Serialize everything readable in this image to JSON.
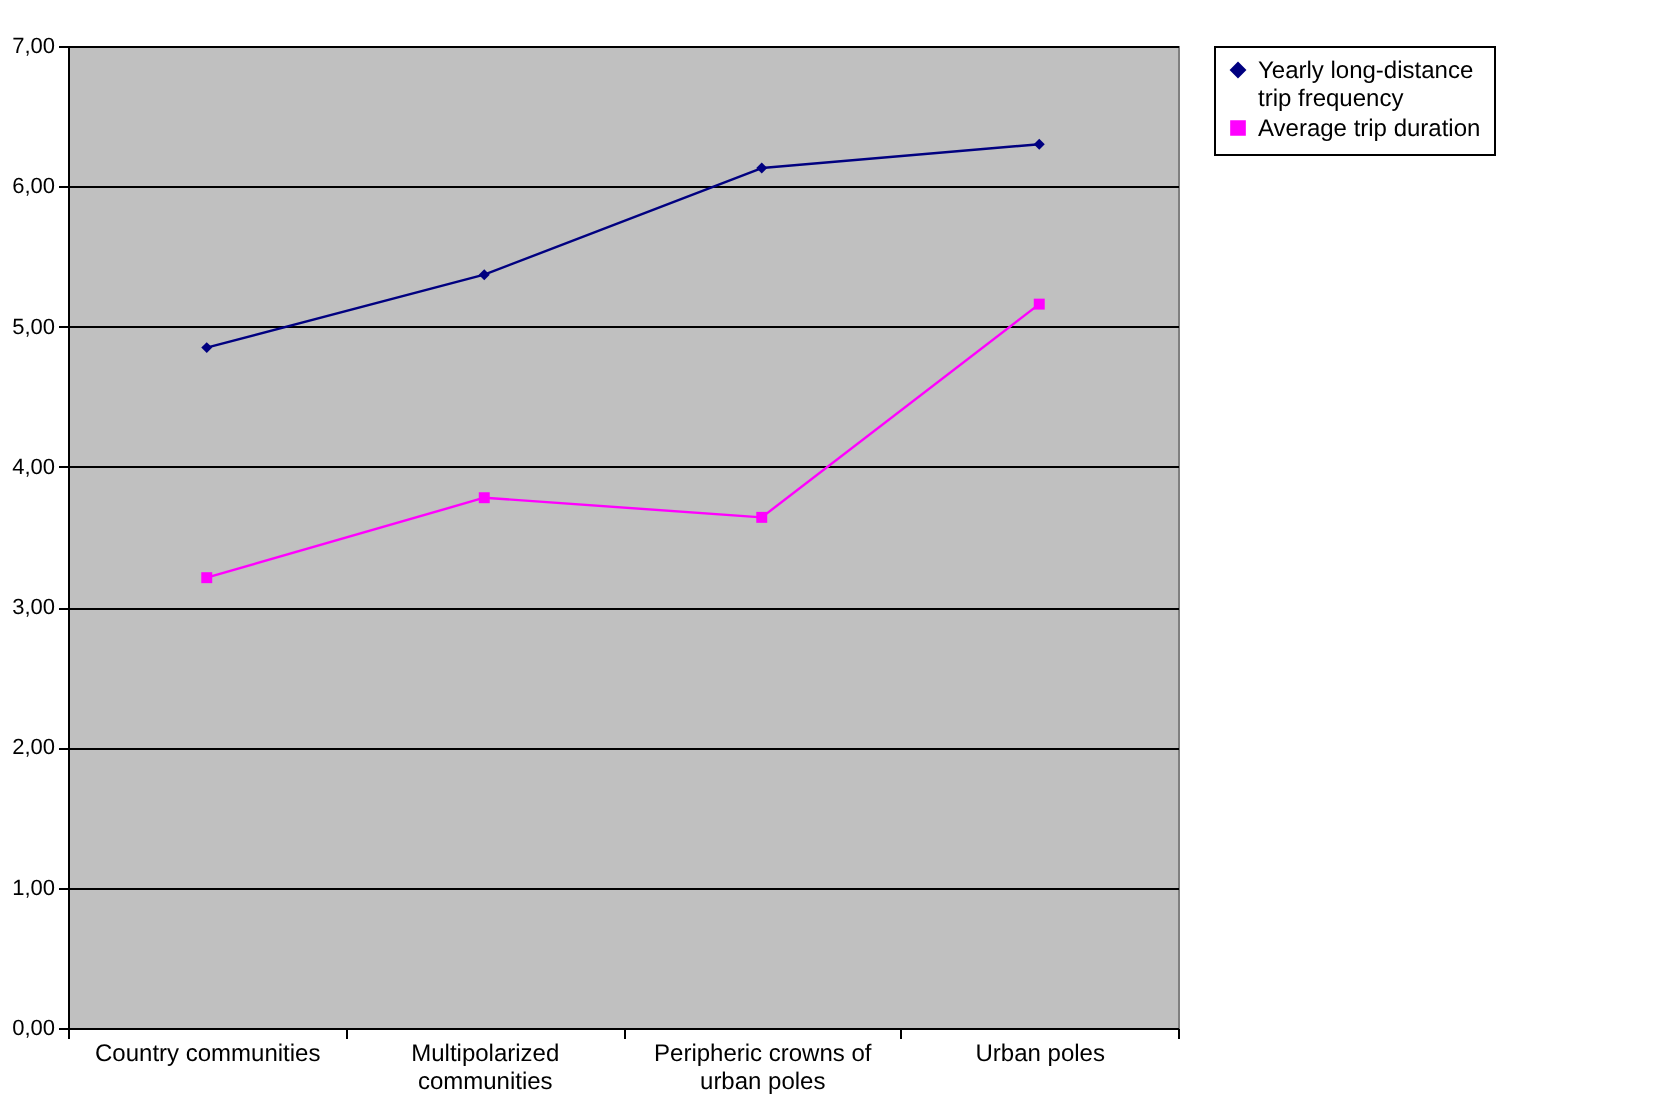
{
  "chart_data": {
    "type": "line",
    "categories": [
      "Country communities",
      "Multipolarized communities",
      "Peripheric crowns of urban poles",
      "Urban poles"
    ],
    "series": [
      {
        "name": "Yearly long-distance trip frequency",
        "color": "#000080",
        "marker": "diamond",
        "values": [
          4.85,
          5.37,
          6.13,
          6.3
        ]
      },
      {
        "name": "Average trip duration",
        "color": "#ff00ff",
        "marker": "square",
        "values": [
          3.21,
          3.78,
          3.64,
          5.16
        ]
      }
    ],
    "ylim": [
      0,
      7
    ],
    "yticks": [
      {
        "value": 0,
        "label": "0,00"
      },
      {
        "value": 1,
        "label": "1,00"
      },
      {
        "value": 2,
        "label": "2,00"
      },
      {
        "value": 3,
        "label": "3,00"
      },
      {
        "value": 4,
        "label": "4,00"
      },
      {
        "value": 5,
        "label": "5,00"
      },
      {
        "value": 6,
        "label": "6,00"
      },
      {
        "value": 7,
        "label": "7,00"
      }
    ],
    "grid": "y",
    "legend": "right"
  }
}
